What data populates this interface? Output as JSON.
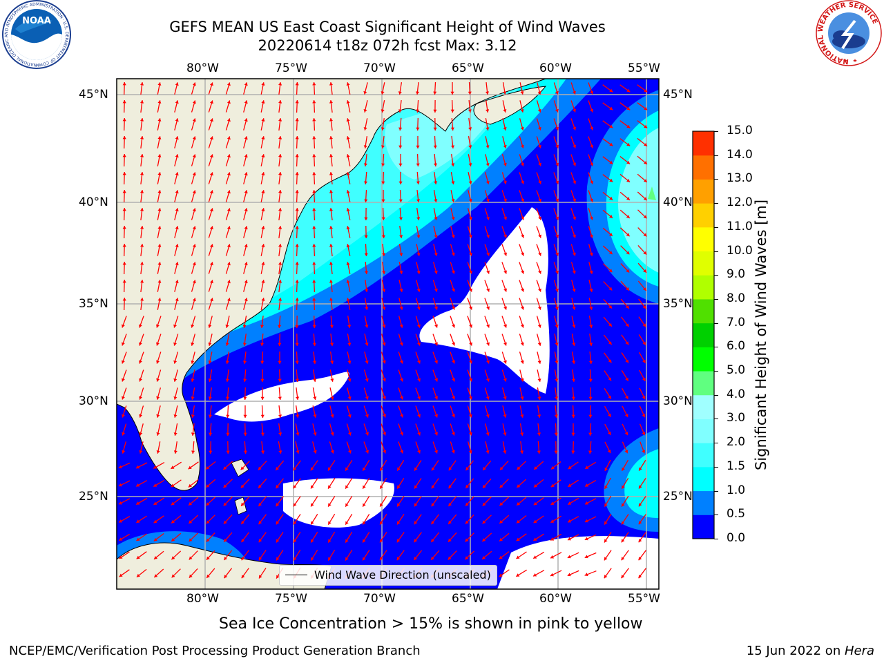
{
  "title_line1": "GEFS MEAN US East Coast Significant Height of Wind Waves",
  "title_line2": "20220614 t18z 072h fcst   Max: 3.12",
  "map": {
    "lon_labels": [
      "80°W",
      "75°W",
      "70°W",
      "65°W",
      "60°W",
      "55°W"
    ],
    "lat_labels": [
      "45°N",
      "40°N",
      "35°N",
      "30°N",
      "25°N"
    ],
    "legend_label": "Wind Wave Direction (unscaled)",
    "arrow_color": "#ff0000",
    "land_color": "#efeedd",
    "ice_free_gap_color": "#ffffff"
  },
  "colorbar": {
    "label": "Significant Height of Wind Waves [m]",
    "levels": [
      "0.0",
      "0.5",
      "1.0",
      "1.5",
      "2.0",
      "3.0",
      "4.0",
      "5.0",
      "6.0",
      "7.0",
      "8.0",
      "9.0",
      "10.0",
      "11.0",
      "12.0",
      "13.0",
      "14.0",
      "15.0"
    ],
    "colors": [
      "#0000ff",
      "#0080ff",
      "#00ffff",
      "#40ffff",
      "#80ffff",
      "#a0ffff",
      "#60ff80",
      "#00ff00",
      "#00d000",
      "#50e000",
      "#b0ff00",
      "#e0ff00",
      "#ffff00",
      "#ffd000",
      "#ffa000",
      "#ff7000",
      "#ff3000",
      "#ff0000"
    ]
  },
  "caption": "Sea Ice Concentration > 15% is shown in pink to yellow",
  "footer_left": "NCEP/EMC/Verification Post Processing Product Generation Branch",
  "footer_right_prefix": "15 Jun 2022 on ",
  "footer_right_host": "Hera",
  "logos": {
    "noaa_text": "NOAA",
    "noaa_ring_text": "NATIONAL OCEANIC AND ATMOSPHERIC ADMINISTRATION · U.S. DEPARTMENT OF COMMERCE",
    "nws_ring_text": "NATIONAL WEATHER SERVICE"
  }
}
